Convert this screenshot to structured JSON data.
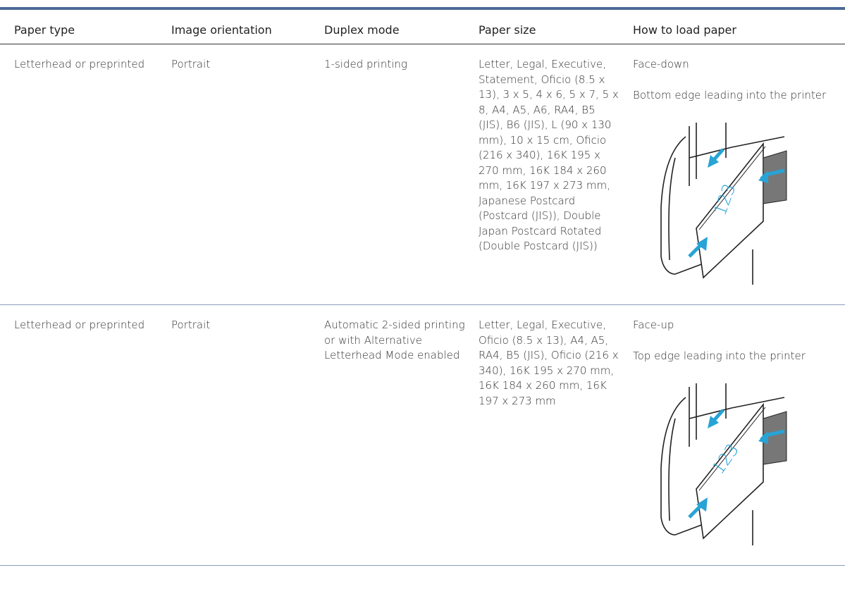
{
  "table": {
    "headers": [
      "Paper type",
      "Image orientation",
      "Duplex mode",
      "Paper size",
      "How to load paper"
    ],
    "rows": [
      {
        "cells": [
          "Letterhead or preprinted",
          "Portrait",
          "1-sided printing",
          "Letter, Legal, Executive, Statement, Oficio (8.5 x 13), 3 x 5, 4 x 6, 5 x 7, 5 x 8, A4, A5, A6, RA4, B5 (JIS), B6 (JIS), L (90 x 130 mm), 10 x 15 cm, Oficio (216 x 340), 16K 195 x 270 mm, 16K 184 x 260 mm, 16K 197 x 273 mm, Japanese Postcard (Postcard (JIS)), Double Japan Postcard Rotated (Double Postcard (JIS))"
        ],
        "load": [
          "Face-down",
          "Bottom edge leading into the printer"
        ],
        "figure_text": "123"
      },
      {
        "cells": [
          "Letterhead or preprinted",
          "Portrait",
          "Automatic 2-sided printing or with Alternative Letterhead Mode enabled",
          "Letter, Legal, Executive, Oficio (8.5 x 13), A4, A5, RA4, B5 (JIS), Oficio (216 x 340), 16K 195 x 270 mm, 16K 184 x 260 mm, 16K 197 x 273 mm"
        ],
        "load": [
          "Face-up",
          "Top edge leading into the printer"
        ],
        "figure_text": "123"
      }
    ]
  }
}
